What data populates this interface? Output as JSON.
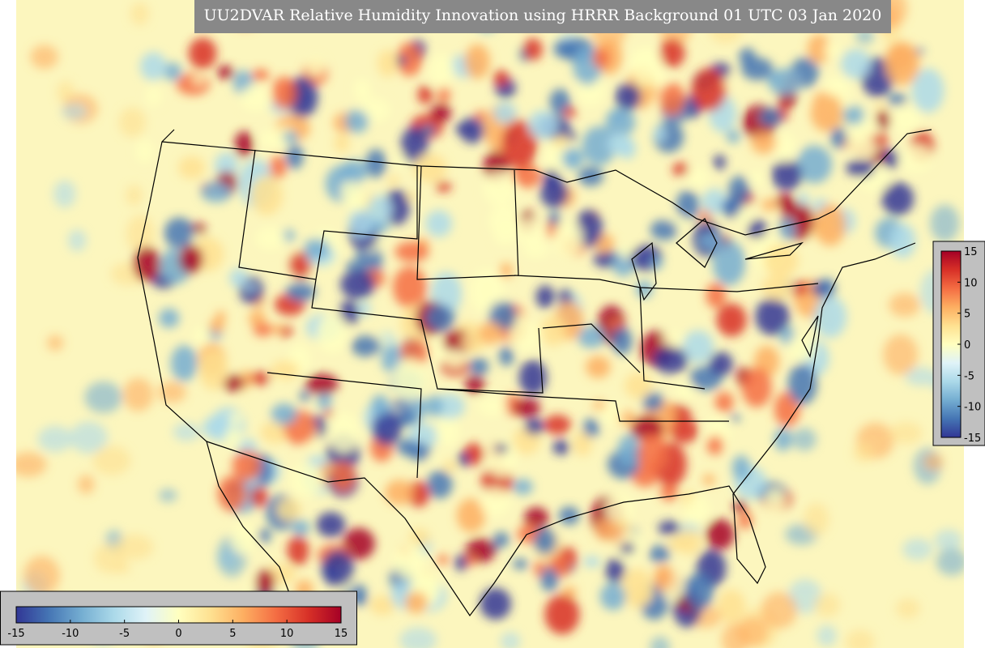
{
  "chart_data": {
    "type": "map",
    "title": "UU2DVAR Relative Humidity Innovation using HRRR Background 01 UTC 03 Jan 2020",
    "colormap": [
      "#313695",
      "#4575b4",
      "#74add1",
      "#abd9e9",
      "#e0f3f8",
      "#ffffbf",
      "#fee090",
      "#fdae61",
      "#f46d43",
      "#d73027",
      "#a50026"
    ],
    "clim": [
      -15,
      15
    ],
    "cticks": [
      -15,
      -10,
      -5,
      0,
      5,
      10,
      15
    ]
  }
}
